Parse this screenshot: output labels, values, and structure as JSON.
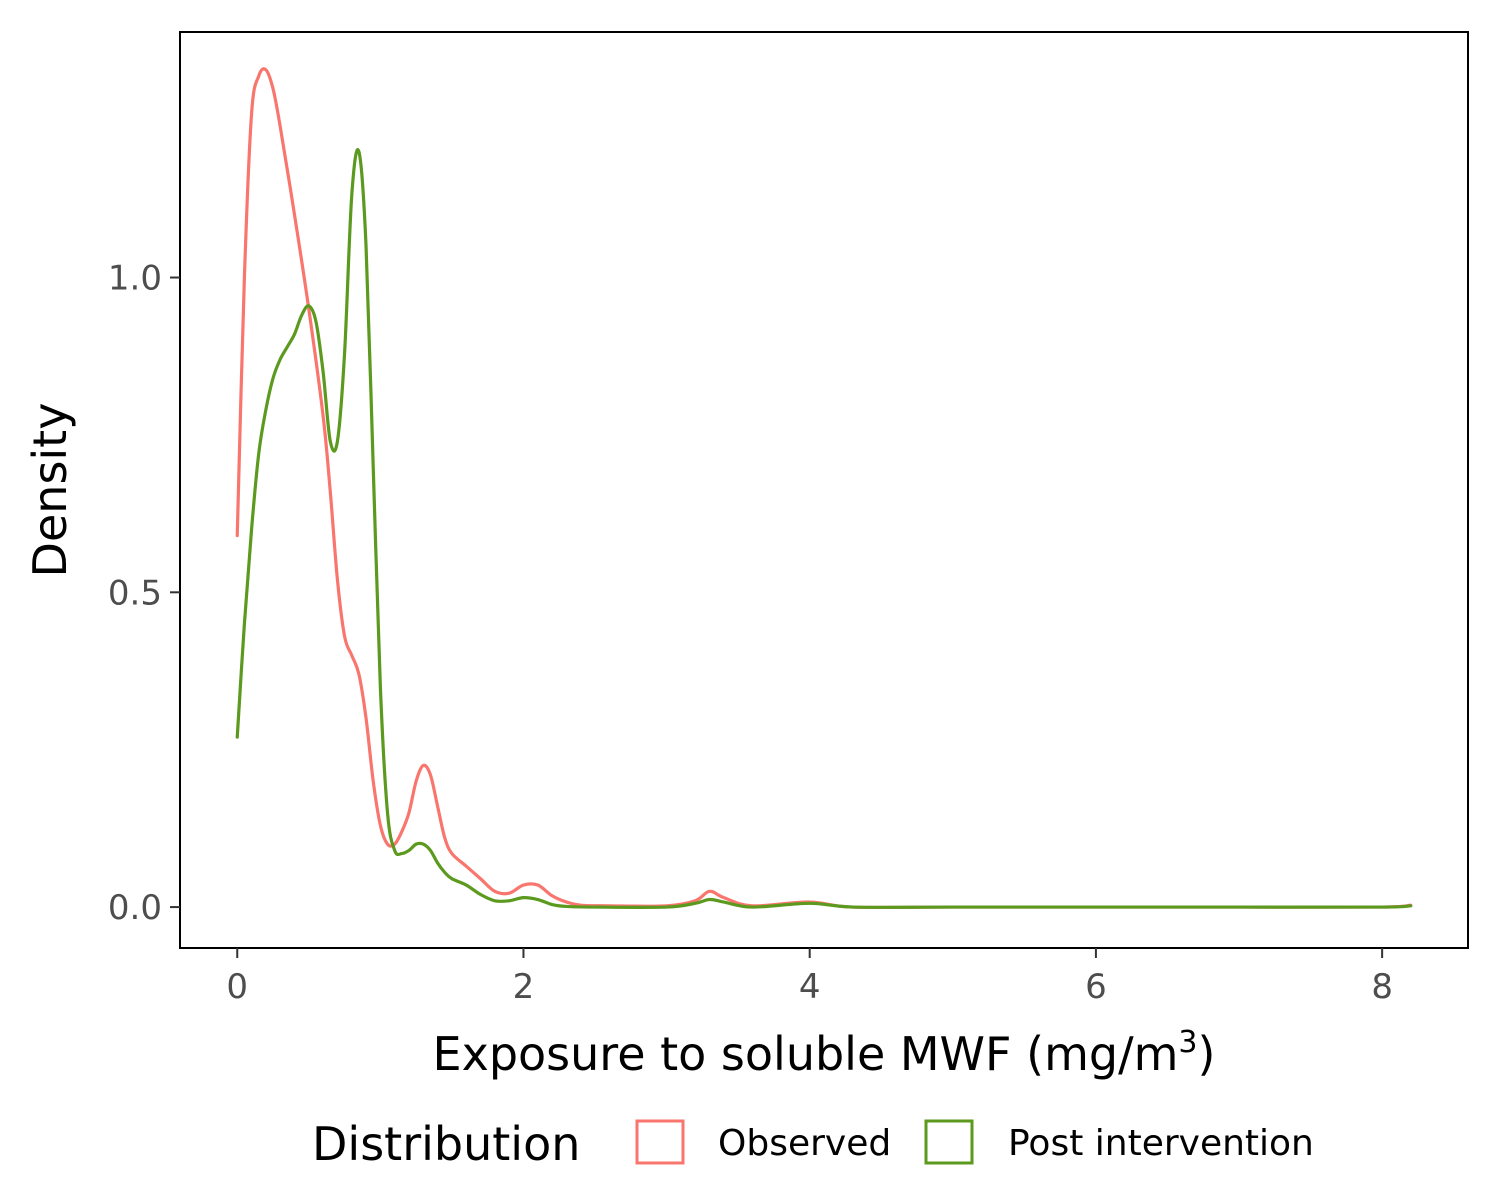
{
  "chart_data": {
    "type": "line",
    "title": "",
    "xlabel": "Exposure to soluble MWF (mg/m",
    "xlabel_sup": "3",
    "xlabel_close": ")",
    "ylabel": "Density",
    "xlim": [
      -0.4,
      8.6
    ],
    "ylim": [
      -0.065,
      1.39
    ],
    "x_ticks": [
      0,
      2,
      4,
      6,
      8
    ],
    "x_tick_labels": [
      "0",
      "2",
      "4",
      "6",
      "8"
    ],
    "y_ticks": [
      0,
      0.5,
      1
    ],
    "y_tick_labels": [
      "0.0",
      "0.5",
      "1.0"
    ],
    "grid": false,
    "legend": {
      "title": "Distribution",
      "position": "bottom",
      "entries": [
        "Observed",
        "Post intervention"
      ]
    },
    "series": [
      {
        "name": "Observed",
        "color": "#F8766D",
        "x": [
          0,
          0.05,
          0.1,
          0.15,
          0.2,
          0.25,
          0.3,
          0.4,
          0.5,
          0.6,
          0.65,
          0.7,
          0.75,
          0.8,
          0.85,
          0.9,
          0.95,
          1.0,
          1.05,
          1.1,
          1.15,
          1.2,
          1.25,
          1.3,
          1.35,
          1.4,
          1.45,
          1.5,
          1.6,
          1.7,
          1.8,
          1.9,
          2.0,
          2.1,
          2.2,
          2.3,
          2.4,
          2.6,
          3.0,
          3.2,
          3.3,
          3.4,
          3.6,
          4.0,
          4.3,
          5.0,
          6.0,
          7.0,
          8.0,
          8.2
        ],
        "y": [
          0.59,
          1.0,
          1.26,
          1.32,
          1.33,
          1.3,
          1.24,
          1.1,
          0.95,
          0.78,
          0.66,
          0.52,
          0.43,
          0.4,
          0.37,
          0.3,
          0.2,
          0.13,
          0.1,
          0.1,
          0.12,
          0.15,
          0.2,
          0.225,
          0.21,
          0.16,
          0.11,
          0.085,
          0.065,
          0.045,
          0.025,
          0.022,
          0.035,
          0.035,
          0.018,
          0.008,
          0.003,
          0.002,
          0.002,
          0.01,
          0.025,
          0.015,
          0.002,
          0.008,
          0.0,
          0.0,
          0.0,
          0.0,
          0.0,
          0.003
        ]
      },
      {
        "name": "Post intervention",
        "color": "#5B9A1E",
        "x": [
          0,
          0.05,
          0.1,
          0.15,
          0.2,
          0.25,
          0.3,
          0.35,
          0.4,
          0.45,
          0.5,
          0.55,
          0.6,
          0.65,
          0.7,
          0.75,
          0.8,
          0.85,
          0.9,
          0.95,
          1.0,
          1.05,
          1.1,
          1.15,
          1.2,
          1.25,
          1.3,
          1.35,
          1.4,
          1.45,
          1.5,
          1.6,
          1.7,
          1.8,
          1.9,
          2.0,
          2.1,
          2.2,
          2.3,
          2.5,
          3.0,
          3.2,
          3.3,
          3.4,
          3.6,
          4.0,
          4.3,
          5.0,
          6.0,
          7.0,
          8.0,
          8.2
        ],
        "y": [
          0.27,
          0.45,
          0.6,
          0.72,
          0.79,
          0.84,
          0.87,
          0.89,
          0.91,
          0.94,
          0.955,
          0.93,
          0.85,
          0.74,
          0.74,
          0.88,
          1.13,
          1.2,
          1.05,
          0.7,
          0.35,
          0.15,
          0.09,
          0.085,
          0.09,
          0.1,
          0.1,
          0.09,
          0.07,
          0.055,
          0.045,
          0.035,
          0.02,
          0.01,
          0.01,
          0.015,
          0.012,
          0.004,
          0.001,
          0.0,
          0.0,
          0.006,
          0.012,
          0.008,
          0.0,
          0.006,
          0.0,
          0.0,
          0.0,
          0.0,
          0.0,
          0.002
        ]
      }
    ]
  }
}
